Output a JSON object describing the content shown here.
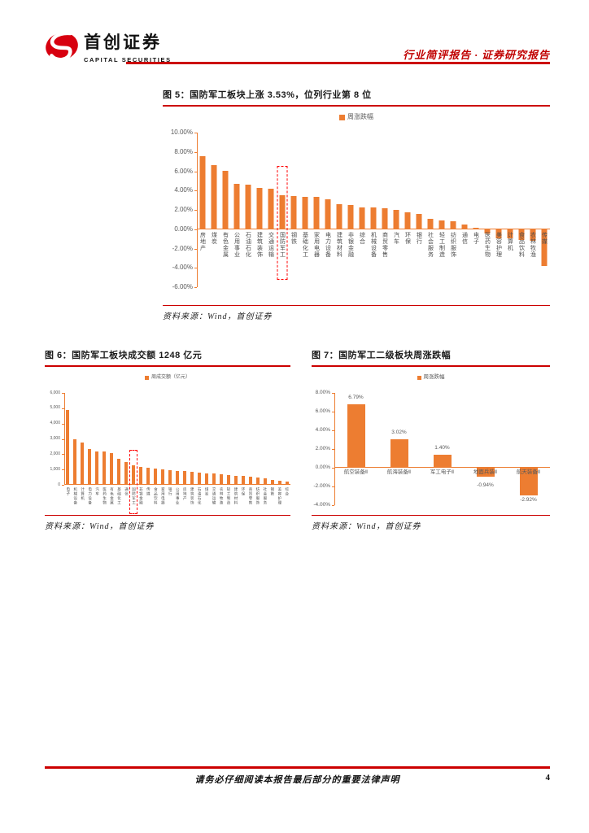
{
  "header": {
    "logo_text_cn": "首创证券",
    "logo_text_en": "CAPITAL SECURITIES",
    "doc_type": "行业简评报告 · 证券研究报告"
  },
  "figures": {
    "fig5_source": "资料来源：Wind，首创证券",
    "fig6_source": "资料来源：Wind，首创证券",
    "fig7_source": "资料来源：Wind，首创证券"
  },
  "footer": {
    "disclaimer": "请务必仔细阅读本报告最后部分的重要法律声明",
    "page_number": "4"
  },
  "colors": {
    "bar_orange": "#ED7D31",
    "rule_red": "#CC0000",
    "highlight_red": "#FF0000",
    "logo_red": "#D7000F"
  },
  "chart_data": [
    {
      "id": "fig5_industry_weekly_change",
      "type": "bar",
      "title": "图 5：国防军工板块上涨 3.53%，位列行业第 8 位",
      "legend": "周涨跌幅",
      "ylim": [
        -6,
        10
      ],
      "ytick_labels": [
        "10.00%",
        "8.00%",
        "6.00%",
        "4.00%",
        "2.00%",
        "0.00%",
        "-2.00%",
        "-4.00%",
        "-6.00%"
      ],
      "categories": [
        "房地产",
        "煤炭",
        "有色金属",
        "公用事业",
        "石油石化",
        "建筑装饰",
        "交通运输",
        "国防军工",
        "钢铁",
        "基础化工",
        "家用电器",
        "电力设备",
        "建筑材料",
        "非银金融",
        "综合",
        "机械设备",
        "商贸零售",
        "汽车",
        "环保",
        "银行",
        "社会服务",
        "轻工制造",
        "纺织服饰",
        "通信",
        "电子",
        "医药生物",
        "美容护理",
        "计算机",
        "食品饮料",
        "农林牧渔",
        "传媒"
      ],
      "values": [
        7.55,
        6.65,
        6.05,
        4.7,
        4.65,
        4.3,
        4.2,
        3.53,
        3.45,
        3.4,
        3.35,
        3.15,
        2.6,
        2.55,
        2.3,
        2.25,
        2.2,
        2.0,
        1.8,
        1.6,
        1.1,
        0.9,
        0.85,
        0.5,
        0.15,
        -0.4,
        -0.9,
        -0.9,
        -1.1,
        -1.2,
        -3.8
      ],
      "highlight_category": "国防军工",
      "highlight_index": 7,
      "unit": "%"
    },
    {
      "id": "fig6_sector_weekly_turnover",
      "type": "bar",
      "title": "图 6：国防军工板块成交额 1248 亿元",
      "legend": "周成交额（亿元）",
      "ylim": [
        0,
        6000
      ],
      "ytick_labels": [
        "6,000",
        "5,000",
        "4,000",
        "3,000",
        "2,000",
        "1,000",
        "0"
      ],
      "categories": [
        "电子",
        "机械设备",
        "计算机",
        "电力设备",
        "汽车",
        "医药生物",
        "有色金属",
        "基础化工",
        "通信",
        "国防军工",
        "非银金融",
        "传媒",
        "食品饮料",
        "家用电器",
        "银行",
        "公用事业",
        "房地产",
        "建筑装饰",
        "石油石化",
        "煤炭",
        "交通运输",
        "农林牧渔",
        "轻工制造",
        "建筑材料",
        "环保",
        "商贸零售",
        "纺织服饰",
        "社会服务",
        "钢铁",
        "美容护理",
        "综合"
      ],
      "values": [
        4900,
        3000,
        2740,
        2340,
        2200,
        2180,
        2050,
        1690,
        1475,
        1248,
        1150,
        1100,
        1045,
        1010,
        955,
        920,
        880,
        840,
        800,
        760,
        720,
        680,
        640,
        600,
        560,
        510,
        460,
        400,
        340,
        280,
        200
      ],
      "highlight_category": "国防军工",
      "highlight_index": 9,
      "unit": "亿元"
    },
    {
      "id": "fig7_defense_subsector_weekly_change",
      "type": "bar",
      "title": "图 7：国防军工二级板块周涨跌幅",
      "legend": "周涨跌幅",
      "ylim": [
        -4,
        8
      ],
      "ytick_labels": [
        "8.00%",
        "6.00%",
        "4.00%",
        "2.00%",
        "0.00%",
        "-2.00%",
        "-4.00%"
      ],
      "categories": [
        "航空装备Ⅱ",
        "航海装备Ⅱ",
        "军工电子Ⅱ",
        "地面兵装Ⅱ",
        "航天装备Ⅱ"
      ],
      "values": [
        6.79,
        3.02,
        1.4,
        -0.94,
        -2.92
      ],
      "data_labels": [
        "6.79%",
        "3.02%",
        "1.40%",
        "-0.94%",
        "-2.92%"
      ],
      "unit": "%"
    }
  ]
}
